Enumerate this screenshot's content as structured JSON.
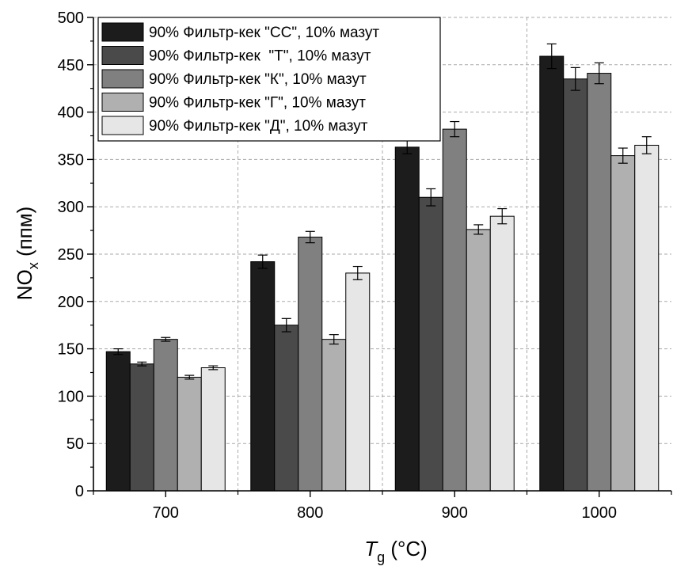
{
  "chart_data": {
    "type": "bar",
    "xlabel_main": "T",
    "xlabel_sub": "g",
    "xlabel_unit": " (°C)",
    "ylabel_main": "NO",
    "ylabel_sub": "x",
    "ylabel_unit": " (ппм)",
    "categories": [
      "700",
      "800",
      "900",
      "1000"
    ],
    "ylim": [
      0,
      500
    ],
    "yticks": [
      0,
      50,
      100,
      150,
      200,
      250,
      300,
      350,
      400,
      450,
      500
    ],
    "grid": true,
    "legend_position": "top-left",
    "series": [
      {
        "name": "90% Фильтр-кек \"СС\", 10% мазут",
        "color": "#1c1c1c",
        "values": [
          147,
          242,
          363,
          459
        ],
        "errors": [
          3,
          7,
          7,
          13
        ]
      },
      {
        "name": "90% Фильтр-кек  \"Т\", 10% мазут",
        "color": "#4a4a4a",
        "values": [
          134,
          175,
          310,
          435
        ],
        "errors": [
          2,
          7,
          9,
          12
        ]
      },
      {
        "name": "90% Фильтр-кек \"К\", 10% мазут",
        "color": "#808080",
        "values": [
          160,
          268,
          382,
          441
        ],
        "errors": [
          2,
          6,
          8,
          11
        ]
      },
      {
        "name": "90% Фильтр-кек \"Г\", 10% мазут",
        "color": "#b0b0b0",
        "values": [
          120,
          160,
          276,
          354
        ],
        "errors": [
          2,
          5,
          5,
          8
        ]
      },
      {
        "name": "90% Фильтр-кек \"Д\", 10% мазут",
        "color": "#e6e6e6",
        "values": [
          130,
          230,
          290,
          365
        ],
        "errors": [
          2,
          7,
          8,
          9
        ]
      }
    ]
  }
}
